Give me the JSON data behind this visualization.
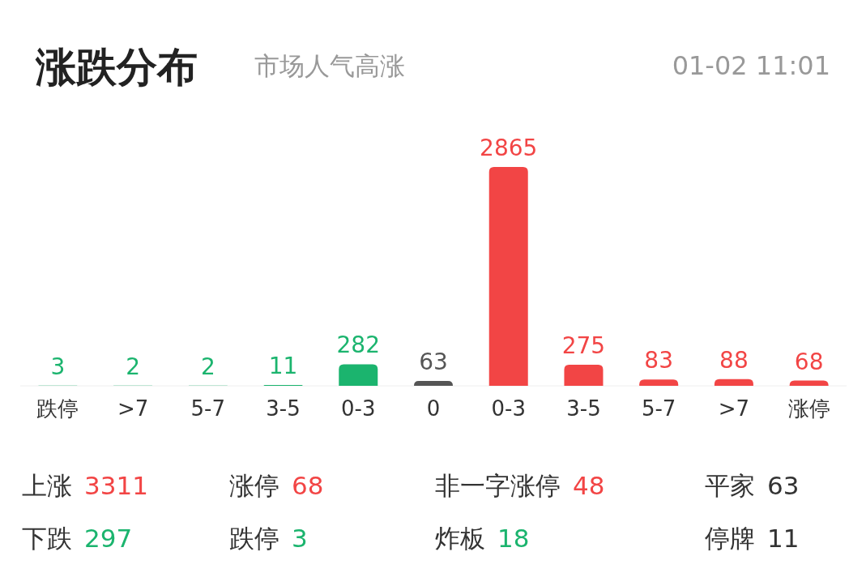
{
  "chart_data": [
    {
      "type": "bar",
      "title": "涨跌分布",
      "subtitle": "市场人气高涨",
      "annotations": [
        "01-02 11:01"
      ],
      "categories": [
        "跌停",
        ">7",
        "5-7",
        "3-5",
        "0-3",
        "0",
        "0-3",
        "3-5",
        "5-7",
        ">7",
        "涨停"
      ],
      "values": [
        3,
        2,
        2,
        11,
        282,
        63,
        2865,
        275,
        83,
        88,
        68
      ],
      "colors": [
        "#1bb46e",
        "#1bb46e",
        "#1bb46e",
        "#1bb46e",
        "#1bb46e",
        "#555555",
        "#f24545",
        "#f24545",
        "#f24545",
        "#f24545",
        "#f24545"
      ],
      "data_labels": true,
      "relative": false
    },
    {
      "type": "other",
      "categories": [
        "上涨",
        "涨停",
        "非一字涨停",
        "平家",
        "下跌",
        "跌停",
        "炸板",
        "停牌"
      ],
      "values": [
        3311,
        68,
        48,
        63,
        297,
        3,
        18,
        11
      ],
      "colors": [
        "#f24545",
        "#f24545",
        "#f24545",
        "#333333",
        "#1bb46e",
        "#1bb46e",
        "#1bb46e",
        "#333333"
      ],
      "data_labels": true
    }
  ]
}
